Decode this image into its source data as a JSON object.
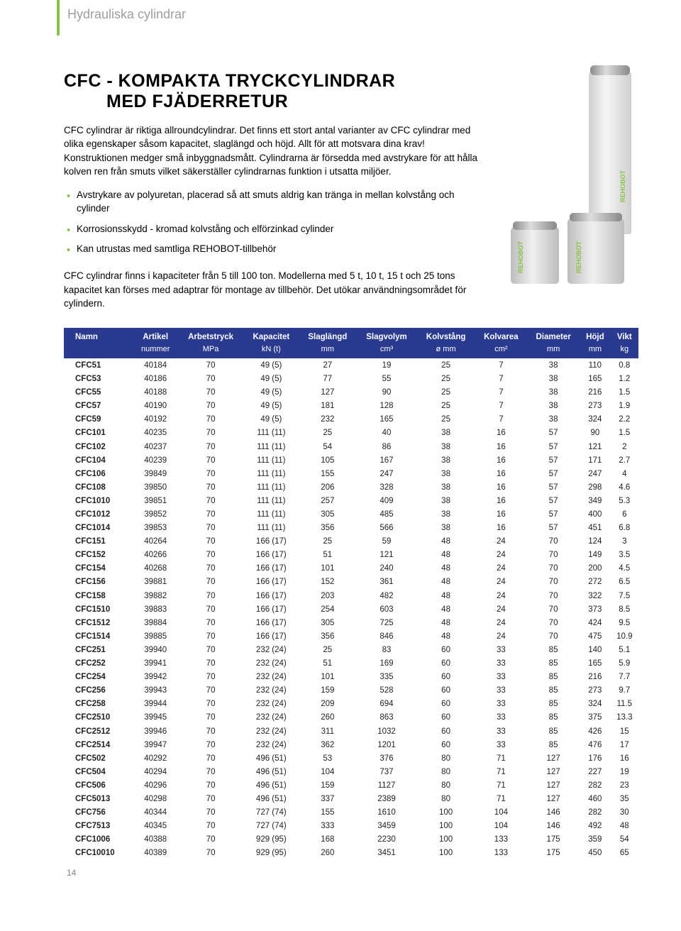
{
  "header": {
    "category": "Hydrauliska cylindrar"
  },
  "title": {
    "line1": "CFC - KOMPAKTA TRYCKCYLINDRAR",
    "line2": "MED FJÄDERRETUR"
  },
  "intro": "CFC cylindrar är riktiga allroundcylindrar. Det finns ett stort antal varianter av CFC cylindrar med olika egenskaper såsom kapacitet, slaglängd och höjd. Allt för att motsvara dina krav! Konstruktionen medger små inbyggnadsmått. Cylindrarna är försedda med avstrykare för att hålla kolven ren från smuts vilket säkerställer cylindrarnas funktion i utsatta miljöer.",
  "bullets": [
    "Avstrykare av polyuretan, placerad så att smuts aldrig kan tränga in mellan kolvstång och cylinder",
    "Korrosionsskydd - kromad kolvstång och elförzinkad cylinder",
    "Kan utrustas med samtliga REHOBOT-tillbehör"
  ],
  "subpara": "CFC cylindrar finns i kapaciteter från 5 till 100 ton. Modellerna med 5 t, 10 t, 15 t och 25 tons kapacitet kan förses med adaptrar för montage av tillbehör. Det utökar användningsområdet för cylindern.",
  "brand": "REHOBOT",
  "table": {
    "header_bg": "#2a3b8f",
    "header_fg": "#ffffff",
    "columns": [
      {
        "h1": "Namn",
        "h2": ""
      },
      {
        "h1": "Artikel",
        "h2": "nummer"
      },
      {
        "h1": "Arbetstryck",
        "h2": "MPa"
      },
      {
        "h1": "Kapacitet",
        "h2": "kN (t)"
      },
      {
        "h1": "Slaglängd",
        "h2": "mm"
      },
      {
        "h1": "Slagvolym",
        "h2": "cm³"
      },
      {
        "h1": "Kolvstång",
        "h2": "ø mm"
      },
      {
        "h1": "Kolvarea",
        "h2": "cm²"
      },
      {
        "h1": "Diameter",
        "h2": "mm"
      },
      {
        "h1": "Höjd",
        "h2": "mm"
      },
      {
        "h1": "Vikt",
        "h2": "kg"
      }
    ],
    "rows": [
      [
        "CFC51",
        "40184",
        "70",
        "49 (5)",
        "27",
        "19",
        "25",
        "7",
        "38",
        "110",
        "0.8"
      ],
      [
        "CFC53",
        "40186",
        "70",
        "49 (5)",
        "77",
        "55",
        "25",
        "7",
        "38",
        "165",
        "1.2"
      ],
      [
        "CFC55",
        "40188",
        "70",
        "49 (5)",
        "127",
        "90",
        "25",
        "7",
        "38",
        "216",
        "1.5"
      ],
      [
        "CFC57",
        "40190",
        "70",
        "49 (5)",
        "181",
        "128",
        "25",
        "7",
        "38",
        "273",
        "1.9"
      ],
      [
        "CFC59",
        "40192",
        "70",
        "49 (5)",
        "232",
        "165",
        "25",
        "7",
        "38",
        "324",
        "2.2"
      ],
      [
        "CFC101",
        "40235",
        "70",
        "111 (11)",
        "25",
        "40",
        "38",
        "16",
        "57",
        "90",
        "1.5"
      ],
      [
        "CFC102",
        "40237",
        "70",
        "111 (11)",
        "54",
        "86",
        "38",
        "16",
        "57",
        "121",
        "2"
      ],
      [
        "CFC104",
        "40239",
        "70",
        "111 (11)",
        "105",
        "167",
        "38",
        "16",
        "57",
        "171",
        "2.7"
      ],
      [
        "CFC106",
        "39849",
        "70",
        "111 (11)",
        "155",
        "247",
        "38",
        "16",
        "57",
        "247",
        "4"
      ],
      [
        "CFC108",
        "39850",
        "70",
        "111 (11)",
        "206",
        "328",
        "38",
        "16",
        "57",
        "298",
        "4.6"
      ],
      [
        "CFC1010",
        "39851",
        "70",
        "111 (11)",
        "257",
        "409",
        "38",
        "16",
        "57",
        "349",
        "5.3"
      ],
      [
        "CFC1012",
        "39852",
        "70",
        "111 (11)",
        "305",
        "485",
        "38",
        "16",
        "57",
        "400",
        "6"
      ],
      [
        "CFC1014",
        "39853",
        "70",
        "111 (11)",
        "356",
        "566",
        "38",
        "16",
        "57",
        "451",
        "6.8"
      ],
      [
        "CFC151",
        "40264",
        "70",
        "166 (17)",
        "25",
        "59",
        "48",
        "24",
        "70",
        "124",
        "3"
      ],
      [
        "CFC152",
        "40266",
        "70",
        "166 (17)",
        "51",
        "121",
        "48",
        "24",
        "70",
        "149",
        "3.5"
      ],
      [
        "CFC154",
        "40268",
        "70",
        "166 (17)",
        "101",
        "240",
        "48",
        "24",
        "70",
        "200",
        "4.5"
      ],
      [
        "CFC156",
        "39881",
        "70",
        "166 (17)",
        "152",
        "361",
        "48",
        "24",
        "70",
        "272",
        "6.5"
      ],
      [
        "CFC158",
        "39882",
        "70",
        "166 (17)",
        "203",
        "482",
        "48",
        "24",
        "70",
        "322",
        "7.5"
      ],
      [
        "CFC1510",
        "39883",
        "70",
        "166 (17)",
        "254",
        "603",
        "48",
        "24",
        "70",
        "373",
        "8.5"
      ],
      [
        "CFC1512",
        "39884",
        "70",
        "166 (17)",
        "305",
        "725",
        "48",
        "24",
        "70",
        "424",
        "9.5"
      ],
      [
        "CFC1514",
        "39885",
        "70",
        "166 (17)",
        "356",
        "846",
        "48",
        "24",
        "70",
        "475",
        "10.9"
      ],
      [
        "CFC251",
        "39940",
        "70",
        "232 (24)",
        "25",
        "83",
        "60",
        "33",
        "85",
        "140",
        "5.1"
      ],
      [
        "CFC252",
        "39941",
        "70",
        "232 (24)",
        "51",
        "169",
        "60",
        "33",
        "85",
        "165",
        "5.9"
      ],
      [
        "CFC254",
        "39942",
        "70",
        "232 (24)",
        "101",
        "335",
        "60",
        "33",
        "85",
        "216",
        "7.7"
      ],
      [
        "CFC256",
        "39943",
        "70",
        "232 (24)",
        "159",
        "528",
        "60",
        "33",
        "85",
        "273",
        "9.7"
      ],
      [
        "CFC258",
        "39944",
        "70",
        "232 (24)",
        "209",
        "694",
        "60",
        "33",
        "85",
        "324",
        "11.5"
      ],
      [
        "CFC2510",
        "39945",
        "70",
        "232 (24)",
        "260",
        "863",
        "60",
        "33",
        "85",
        "375",
        "13.3"
      ],
      [
        "CFC2512",
        "39946",
        "70",
        "232 (24)",
        "311",
        "1032",
        "60",
        "33",
        "85",
        "426",
        "15"
      ],
      [
        "CFC2514",
        "39947",
        "70",
        "232 (24)",
        "362",
        "1201",
        "60",
        "33",
        "85",
        "476",
        "17"
      ],
      [
        "CFC502",
        "40292",
        "70",
        "496 (51)",
        "53",
        "376",
        "80",
        "71",
        "127",
        "176",
        "16"
      ],
      [
        "CFC504",
        "40294",
        "70",
        "496 (51)",
        "104",
        "737",
        "80",
        "71",
        "127",
        "227",
        "19"
      ],
      [
        "CFC506",
        "40296",
        "70",
        "496 (51)",
        "159",
        "1127",
        "80",
        "71",
        "127",
        "282",
        "23"
      ],
      [
        "CFC5013",
        "40298",
        "70",
        "496 (51)",
        "337",
        "2389",
        "80",
        "71",
        "127",
        "460",
        "35"
      ],
      [
        "CFC756",
        "40344",
        "70",
        "727 (74)",
        "155",
        "1610",
        "100",
        "104",
        "146",
        "282",
        "30"
      ],
      [
        "CFC7513",
        "40345",
        "70",
        "727 (74)",
        "333",
        "3459",
        "100",
        "104",
        "146",
        "492",
        "48"
      ],
      [
        "CFC1006",
        "40388",
        "70",
        "929 (95)",
        "168",
        "2230",
        "100",
        "133",
        "175",
        "359",
        "54"
      ],
      [
        "CFC10010",
        "40389",
        "70",
        "929 (95)",
        "260",
        "3451",
        "100",
        "133",
        "175",
        "450",
        "65"
      ]
    ]
  },
  "page_number": "14"
}
